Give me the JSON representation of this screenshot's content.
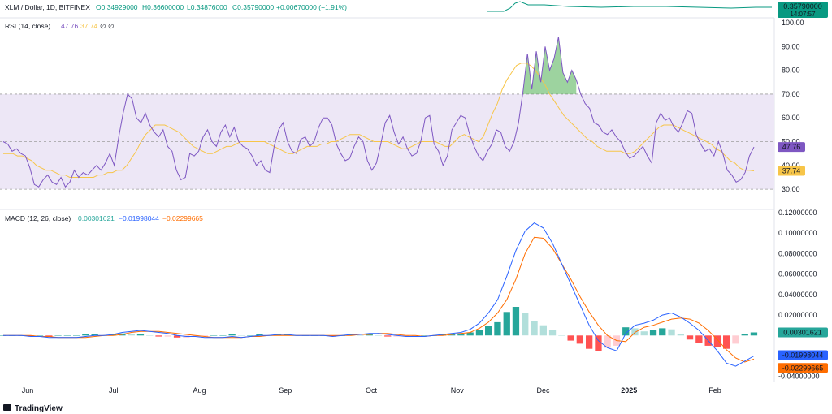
{
  "header": {
    "symbol": "XLM / Dollar, 1D, BITFINEX",
    "open": "O0.34929000",
    "high": "H0.36600000",
    "low": "L0.34876000",
    "close": "C0.35790000",
    "change": "+0.00670000 (+1.91%)",
    "price_badge": "0.35790000",
    "countdown": "14:07:57",
    "up_color": "#089981",
    "down_color": "#f23645"
  },
  "branding": {
    "name": "TradingView"
  },
  "chart_data": [
    {
      "type": "line",
      "panel": "RSI",
      "legend": {
        "name": "RSI (14, close)",
        "rsi": "47.76",
        "ma": "37.74",
        "extra1": "∅",
        "extra2": "∅"
      },
      "y_ticks": [
        "100.00",
        "90.00",
        "80.00",
        "70.00",
        "60.00",
        "50.00",
        "40.00",
        "30.00"
      ],
      "ylim": [
        28,
        100
      ],
      "bands": {
        "upper": 70,
        "middle": 50,
        "lower": 30
      },
      "last_values": {
        "rsi": "47.76",
        "ma": "37.74"
      },
      "colors": {
        "rsi": "#7e57c2",
        "ma": "#f7c548",
        "band": "#ede7f6",
        "overbought": "#4caf50"
      },
      "series": [
        {
          "name": "RSI",
          "values": [
            50,
            49,
            46,
            47,
            45,
            44,
            39,
            32,
            31,
            34,
            36,
            33,
            32,
            35,
            31,
            33,
            38,
            35,
            37,
            36,
            38,
            40,
            38,
            41,
            45,
            40,
            52,
            62,
            70,
            68,
            60,
            58,
            62,
            57,
            54,
            52,
            55,
            48,
            46,
            38,
            34,
            35,
            45,
            44,
            46,
            52,
            55,
            50,
            48,
            54,
            57,
            52,
            56,
            50,
            48,
            47,
            44,
            40,
            42,
            38,
            37,
            48,
            55,
            58,
            50,
            46,
            45,
            51,
            52,
            48,
            50,
            56,
            60,
            60,
            57,
            49,
            45,
            42,
            43,
            48,
            52,
            50,
            42,
            38,
            41,
            49,
            58,
            61,
            54,
            49,
            52,
            47,
            44,
            45,
            50,
            60,
            61,
            49,
            46,
            40,
            44,
            55,
            58,
            61,
            60,
            53,
            48,
            44,
            42,
            46,
            49,
            55,
            54,
            48,
            46,
            50,
            58,
            71,
            87,
            72,
            88,
            75,
            90,
            80,
            85,
            94,
            79,
            75,
            80,
            76,
            70,
            66,
            64,
            58,
            57,
            54,
            53,
            55,
            52,
            50,
            46,
            43,
            44,
            46,
            48,
            44,
            41,
            58,
            62,
            59,
            60,
            56,
            54,
            58,
            63,
            62,
            53,
            49,
            46,
            47,
            44,
            50,
            45,
            38,
            36,
            33,
            34,
            37,
            44,
            47.76
          ]
        },
        {
          "name": "MA",
          "values": [
            45,
            45,
            45,
            44,
            44,
            43,
            42,
            40,
            39,
            38,
            38,
            37,
            36,
            36,
            35,
            35,
            35,
            35,
            35,
            35,
            36,
            36,
            37,
            37,
            38,
            38,
            40,
            43,
            46,
            50,
            53,
            55,
            57,
            57,
            57,
            56,
            55,
            54,
            52,
            50,
            48,
            47,
            46,
            45,
            45,
            46,
            47,
            48,
            48,
            49,
            50,
            50,
            50,
            50,
            50,
            50,
            49,
            48,
            47,
            46,
            45,
            45,
            46,
            47,
            48,
            48,
            48,
            49,
            49,
            50,
            50,
            51,
            52,
            53,
            53,
            53,
            52,
            51,
            50,
            50,
            50,
            50,
            49,
            48,
            47,
            47,
            48,
            49,
            50,
            50,
            50,
            50,
            49,
            48,
            48,
            50,
            52,
            53,
            52,
            51,
            50,
            52,
            57,
            62,
            66,
            72,
            76,
            79,
            82,
            83,
            83,
            82,
            80,
            77,
            74,
            70,
            67,
            64,
            61,
            59,
            57,
            55,
            53,
            51,
            50,
            48,
            47,
            46,
            46,
            46,
            46,
            45,
            45,
            46,
            48,
            50,
            52,
            54,
            56,
            57,
            57,
            57,
            56,
            55,
            54,
            53,
            52,
            51,
            50,
            49,
            47,
            46,
            44,
            42,
            41,
            39,
            38,
            38,
            37.74
          ]
        }
      ]
    },
    {
      "type": "line",
      "panel": "MACD",
      "legend": {
        "name": "MACD (12, 26, close)",
        "histogram": "0.00301621",
        "macd": "−0.01998044",
        "signal": "−0.02299665"
      },
      "y_ticks": [
        "0.12000000",
        "0.10000000",
        "0.08000000",
        "0.06000000",
        "0.04000000",
        "0.02000000",
        "-0.04000000"
      ],
      "ylim": [
        -0.045,
        0.12
      ],
      "last_values": {
        "histogram": "0.00301621",
        "macd": "-0.01998044",
        "signal": "-0.02299665"
      },
      "colors": {
        "macd": "#2962ff",
        "signal": "#ff6d00",
        "hist_up_strong": "#26a69a",
        "hist_up_weak": "#b2dfdb",
        "hist_down_strong": "#ff5252",
        "hist_down_weak": "#ffcdd2"
      },
      "series": [
        {
          "name": "MACD",
          "values": [
            0,
            0,
            0,
            -0.001,
            -0.001,
            -0.002,
            -0.002,
            -0.002,
            -0.002,
            -0.001,
            0,
            0,
            0.001,
            0.003,
            0.004,
            0.005,
            0.004,
            0.003,
            0.002,
            0,
            -0.001,
            -0.001,
            -0.002,
            -0.002,
            -0.002,
            -0.001,
            -0.002,
            -0.001,
            0,
            0,
            0.001,
            0.001,
            0,
            0,
            0,
            0,
            -0.001,
            0,
            0.001,
            0.001,
            0.002,
            0.002,
            0.001,
            0,
            -0.001,
            -0.001,
            -0.001,
            0,
            0.001,
            0.002,
            0.003,
            0.006,
            0.012,
            0.022,
            0.035,
            0.058,
            0.083,
            0.102,
            0.11,
            0.105,
            0.09,
            0.07,
            0.05,
            0.03,
            0.01,
            -0.005,
            -0.012,
            -0.015,
            0.002,
            0.01,
            0.012,
            0.015,
            0.02,
            0.022,
            0.018,
            0.012,
            0.005,
            -0.005,
            -0.015,
            -0.027,
            -0.03,
            -0.025,
            -0.01998044
          ]
        },
        {
          "name": "Signal",
          "values": [
            0,
            0,
            0,
            0,
            -0.001,
            -0.001,
            -0.002,
            -0.002,
            -0.002,
            -0.002,
            -0.001,
            0,
            0,
            0.001,
            0.003,
            0.004,
            0.004,
            0.004,
            0.003,
            0.002,
            0.001,
            0,
            -0.001,
            -0.002,
            -0.002,
            -0.002,
            -0.002,
            -0.001,
            -0.001,
            0,
            0,
            0,
            0,
            0,
            0,
            0,
            0,
            0,
            0,
            0.001,
            0.001,
            0.002,
            0.002,
            0.001,
            0,
            0,
            -0.001,
            0,
            0,
            0.001,
            0.002,
            0.003,
            0.007,
            0.013,
            0.022,
            0.035,
            0.055,
            0.08,
            0.096,
            0.095,
            0.085,
            0.07,
            0.055,
            0.038,
            0.023,
            0.01,
            0,
            -0.005,
            -0.006,
            0.003,
            0.008,
            0.01,
            0.013,
            0.016,
            0.017,
            0.016,
            0.012,
            0.005,
            -0.004,
            -0.014,
            -0.022,
            -0.026,
            -0.02299665
          ]
        }
      ]
    }
  ],
  "x_axis": {
    "labels": [
      "Jun",
      "Jul",
      "Aug",
      "Sep",
      "Oct",
      "Nov",
      "Dec",
      "2025",
      "Feb"
    ]
  }
}
